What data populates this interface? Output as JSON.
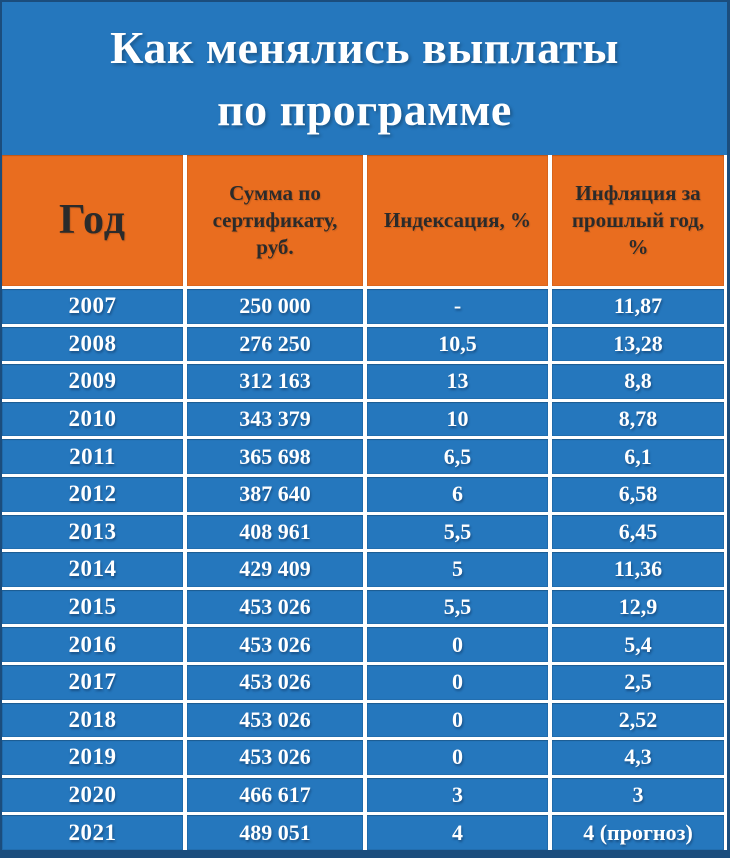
{
  "title": {
    "line1": "Как менялись выплаты",
    "line2": "по программе"
  },
  "chart_data": {
    "type": "table",
    "title": "Как менялись выплаты по программе",
    "columns": [
      "Год",
      "Сумма по сертификату, руб.",
      "Индексация, %",
      "Инфляция за прошлый год, %"
    ],
    "rows": [
      [
        "2007",
        "250 000",
        "-",
        "11,87"
      ],
      [
        "2008",
        "276 250",
        "10,5",
        "13,28"
      ],
      [
        "2009",
        "312 163",
        "13",
        "8,8"
      ],
      [
        "2010",
        "343 379",
        "10",
        "8,78"
      ],
      [
        "2011",
        "365 698",
        "6,5",
        "6,1"
      ],
      [
        "2012",
        "387 640",
        "6",
        "6,58"
      ],
      [
        "2013",
        "408 961",
        "5,5",
        "6,45"
      ],
      [
        "2014",
        "429 409",
        "5",
        "11,36"
      ],
      [
        "2015",
        "453 026",
        "5,5",
        "12,9"
      ],
      [
        "2016",
        "453 026",
        "0",
        "5,4"
      ],
      [
        "2017",
        "453 026",
        "0",
        "2,5"
      ],
      [
        "2018",
        "453 026",
        "0",
        "2,52"
      ],
      [
        "2019",
        "453 026",
        "0",
        "4,3"
      ],
      [
        "2020",
        "466 617",
        "3",
        "3"
      ],
      [
        "2021",
        "489 051",
        "4",
        "4 (прогноз)"
      ]
    ]
  },
  "colors": {
    "background_blue": "#2577BD",
    "header_orange": "#E96D1F",
    "grid_white": "#FFFFFF",
    "header_text": "#2B2B2B",
    "cell_text": "#FFFFFF",
    "outer_border": "#1B4D7D"
  }
}
